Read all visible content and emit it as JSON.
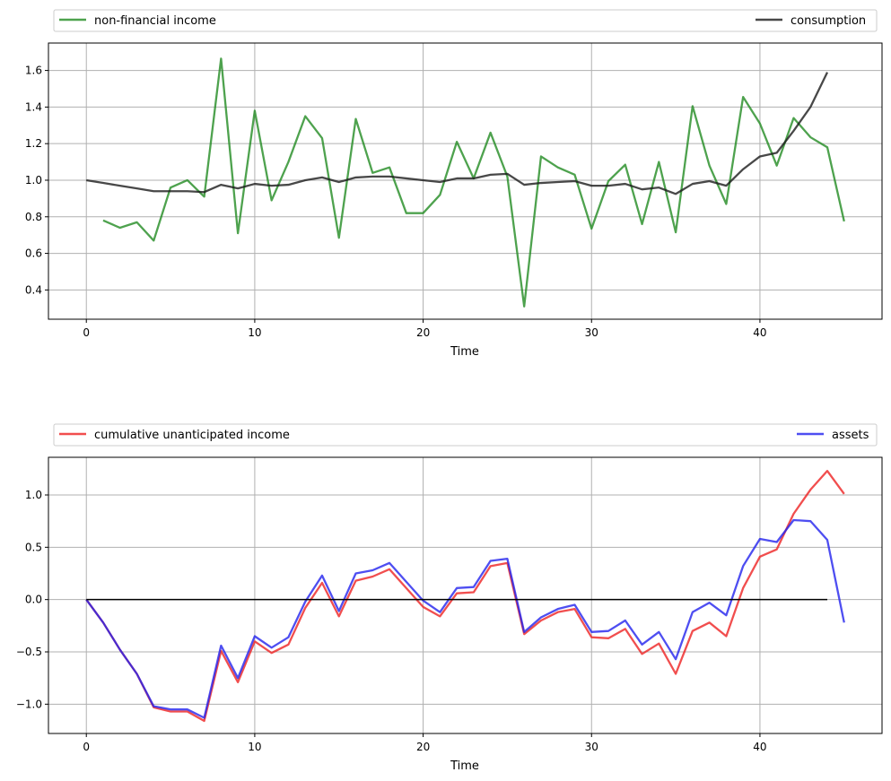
{
  "chart_data": [
    {
      "type": "line",
      "xlabel": "Time",
      "ylabel": "",
      "xlim": [
        -2.25,
        47.25
      ],
      "ylim": [
        0.24,
        1.75
      ],
      "xticks": [
        0,
        10,
        20,
        30,
        40
      ],
      "yticks": [
        0.4,
        0.6,
        0.8,
        1.0,
        1.2,
        1.4,
        1.6
      ],
      "grid": true,
      "legend_position": "above, spanning full width",
      "series": [
        {
          "name": "non-financial income",
          "color": "#228B22",
          "x": [
            1,
            2,
            3,
            4,
            5,
            6,
            7,
            8,
            9,
            10,
            11,
            12,
            13,
            14,
            15,
            16,
            17,
            18,
            19,
            20,
            21,
            22,
            23,
            24,
            25,
            26,
            27,
            28,
            29,
            30,
            31,
            32,
            33,
            34,
            35,
            36,
            37,
            38,
            39,
            40,
            41,
            42,
            43,
            44,
            45
          ],
          "values": [
            0.78,
            0.74,
            0.77,
            0.67,
            0.96,
            1.0,
            0.91,
            1.665,
            0.71,
            1.38,
            0.89,
            1.1,
            1.35,
            1.23,
            0.685,
            1.335,
            1.04,
            1.07,
            0.82,
            0.82,
            0.92,
            1.21,
            1.01,
            1.26,
            1.02,
            0.31,
            1.13,
            1.07,
            1.03,
            0.735,
            0.995,
            1.085,
            0.76,
            1.1,
            0.715,
            1.405,
            1.08,
            0.87,
            1.455,
            1.31,
            1.08,
            1.34,
            1.235,
            1.18,
            0.775
          ]
        },
        {
          "name": "consumption",
          "color": "#1a1a1a",
          "x": [
            0,
            1,
            2,
            3,
            4,
            5,
            6,
            7,
            8,
            9,
            10,
            11,
            12,
            13,
            14,
            15,
            16,
            17,
            18,
            19,
            20,
            21,
            22,
            23,
            24,
            25,
            26,
            27,
            28,
            29,
            30,
            31,
            32,
            33,
            34,
            35,
            36,
            37,
            38,
            39,
            40,
            41,
            42,
            43,
            44
          ],
          "values": [
            1.0,
            0.985,
            0.97,
            0.955,
            0.94,
            0.94,
            0.94,
            0.935,
            0.975,
            0.955,
            0.98,
            0.97,
            0.975,
            1.0,
            1.015,
            0.99,
            1.015,
            1.02,
            1.02,
            1.01,
            1.0,
            0.99,
            1.01,
            1.01,
            1.03,
            1.035,
            0.975,
            0.985,
            0.99,
            0.995,
            0.97,
            0.97,
            0.98,
            0.95,
            0.96,
            0.925,
            0.98,
            0.995,
            0.97,
            1.06,
            1.13,
            1.15,
            1.27,
            1.4,
            1.59
          ]
        }
      ]
    },
    {
      "type": "line",
      "xlabel": "Time",
      "ylabel": "",
      "xlim": [
        -2.25,
        47.25
      ],
      "ylim": [
        -1.28,
        1.36
      ],
      "xticks": [
        0,
        10,
        20,
        30,
        40
      ],
      "yticks": [
        -1.0,
        -0.5,
        0.0,
        0.5,
        1.0
      ],
      "grid": true,
      "legend_position": "above, spanning full width",
      "series": [
        {
          "name": "cumulative unanticipated income",
          "color": "#ee2222",
          "x": [
            0,
            1,
            2,
            3,
            4,
            5,
            6,
            7,
            8,
            9,
            10,
            11,
            12,
            13,
            14,
            15,
            16,
            17,
            18,
            19,
            20,
            21,
            22,
            23,
            24,
            25,
            26,
            27,
            28,
            29,
            30,
            31,
            32,
            33,
            34,
            35,
            36,
            37,
            38,
            39,
            40,
            41,
            42,
            43,
            44,
            45
          ],
          "values": [
            0.0,
            -0.22,
            -0.48,
            -0.71,
            -1.03,
            -1.07,
            -1.07,
            -1.16,
            -0.49,
            -0.79,
            -0.4,
            -0.51,
            -0.43,
            -0.08,
            0.16,
            -0.16,
            0.18,
            0.22,
            0.29,
            0.11,
            -0.07,
            -0.16,
            0.06,
            0.07,
            0.32,
            0.35,
            -0.33,
            -0.2,
            -0.12,
            -0.09,
            -0.36,
            -0.37,
            -0.28,
            -0.52,
            -0.42,
            -0.71,
            -0.3,
            -0.22,
            -0.35,
            0.11,
            0.41,
            0.48,
            0.82,
            1.05,
            1.23,
            1.01
          ]
        },
        {
          "name": "assets",
          "color": "#2222ee",
          "x": [
            0,
            1,
            2,
            3,
            4,
            5,
            6,
            7,
            8,
            9,
            10,
            11,
            12,
            13,
            14,
            15,
            16,
            17,
            18,
            19,
            20,
            21,
            22,
            23,
            24,
            25,
            26,
            27,
            28,
            29,
            30,
            31,
            32,
            33,
            34,
            35,
            36,
            37,
            38,
            39,
            40,
            41,
            42,
            43,
            44,
            45
          ],
          "values": [
            0.0,
            -0.22,
            -0.48,
            -0.71,
            -1.02,
            -1.05,
            -1.05,
            -1.13,
            -0.44,
            -0.75,
            -0.35,
            -0.46,
            -0.36,
            -0.02,
            0.23,
            -0.11,
            0.25,
            0.28,
            0.35,
            0.17,
            -0.01,
            -0.12,
            0.11,
            0.12,
            0.37,
            0.39,
            -0.31,
            -0.17,
            -0.09,
            -0.05,
            -0.31,
            -0.3,
            -0.2,
            -0.43,
            -0.31,
            -0.57,
            -0.12,
            -0.03,
            -0.15,
            0.32,
            0.58,
            0.55,
            0.76,
            0.75,
            0.57,
            -0.22
          ]
        },
        {
          "name": "zero",
          "color": "#000000",
          "hidden_in_legend": true,
          "x": [
            0,
            44
          ],
          "values": [
            0.0,
            0.0
          ]
        }
      ]
    }
  ]
}
